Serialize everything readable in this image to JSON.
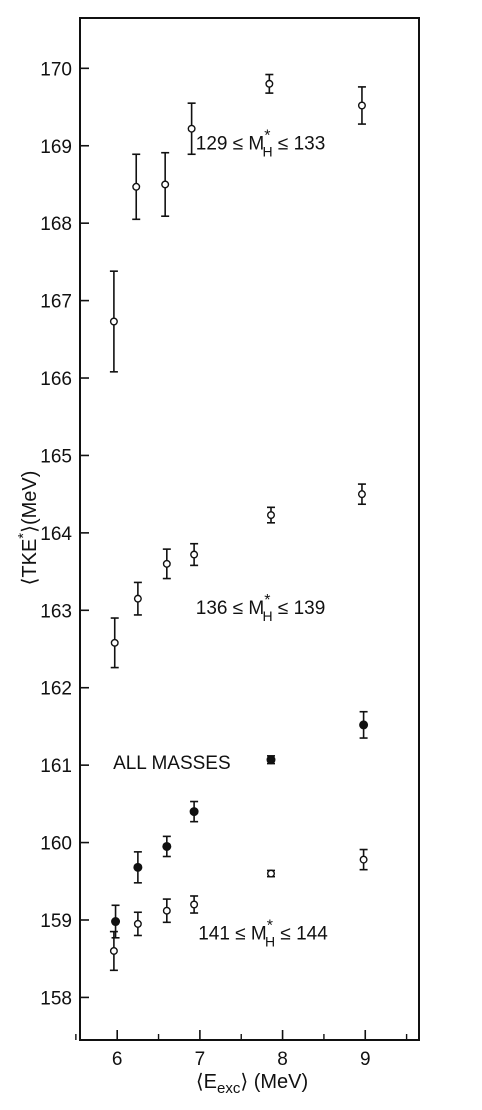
{
  "chart_data": {
    "type": "scatter",
    "title": "",
    "xlabel": "⟨E_exc⟩ (MeV)",
    "ylabel": "⟨TKE*⟩(MeV)",
    "xlim": [
      5.55,
      9.65
    ],
    "ylim": [
      157.45,
      170.65
    ],
    "x_ticks": [
      6,
      7,
      8,
      9
    ],
    "y_ticks": [
      158,
      159,
      160,
      161,
      162,
      163,
      164,
      165,
      166,
      167,
      168,
      169,
      170
    ],
    "grid": false,
    "series": [
      {
        "label": "129 ≤ M*H ≤ 133",
        "marker": "open",
        "points": [
          {
            "x": 5.96,
            "y": 166.73,
            "err": 0.65
          },
          {
            "x": 6.23,
            "y": 168.47,
            "err": 0.42
          },
          {
            "x": 6.58,
            "y": 168.5,
            "err": 0.41
          },
          {
            "x": 6.9,
            "y": 169.22,
            "err": 0.33
          },
          {
            "x": 7.84,
            "y": 169.8,
            "err": 0.12
          },
          {
            "x": 8.96,
            "y": 169.52,
            "err": 0.24
          }
        ]
      },
      {
        "label": "136 ≤ M*H ≤ 139",
        "marker": "open",
        "points": [
          {
            "x": 5.97,
            "y": 162.58,
            "err": 0.32
          },
          {
            "x": 6.25,
            "y": 163.15,
            "err": 0.21
          },
          {
            "x": 6.6,
            "y": 163.6,
            "err": 0.19
          },
          {
            "x": 6.93,
            "y": 163.72,
            "err": 0.14
          },
          {
            "x": 7.86,
            "y": 164.23,
            "err": 0.1
          },
          {
            "x": 8.96,
            "y": 164.5,
            "err": 0.13
          }
        ]
      },
      {
        "label": "ALL MASSES",
        "marker": "filled",
        "points": [
          {
            "x": 5.98,
            "y": 158.98,
            "err": 0.21
          },
          {
            "x": 6.25,
            "y": 159.68,
            "err": 0.2
          },
          {
            "x": 6.6,
            "y": 159.95,
            "err": 0.13
          },
          {
            "x": 6.93,
            "y": 160.4,
            "err": 0.13
          },
          {
            "x": 7.86,
            "y": 161.07,
            "err": 0.05
          },
          {
            "x": 8.98,
            "y": 161.52,
            "err": 0.17
          }
        ]
      },
      {
        "label": "141 ≤ M*H ≤ 144",
        "marker": "open",
        "points": [
          {
            "x": 5.96,
            "y": 158.6,
            "err": 0.25
          },
          {
            "x": 6.25,
            "y": 158.95,
            "err": 0.15
          },
          {
            "x": 6.6,
            "y": 159.12,
            "err": 0.15
          },
          {
            "x": 6.93,
            "y": 159.2,
            "err": 0.11
          },
          {
            "x": 7.86,
            "y": 159.6,
            "err": 0.04
          },
          {
            "x": 8.98,
            "y": 159.78,
            "err": 0.13
          }
        ]
      }
    ],
    "annotations": [
      {
        "text": "129 ≤ M*H ≤ 133",
        "x": 6.95,
        "y": 168.95
      },
      {
        "text": "136 ≤ M*H ≤ 139",
        "x": 6.95,
        "y": 162.95
      },
      {
        "text": "ALL MASSES",
        "x": 5.95,
        "y": 160.95
      },
      {
        "text": "141 ≤ M*H ≤ 144",
        "x": 6.98,
        "y": 158.75
      }
    ]
  }
}
